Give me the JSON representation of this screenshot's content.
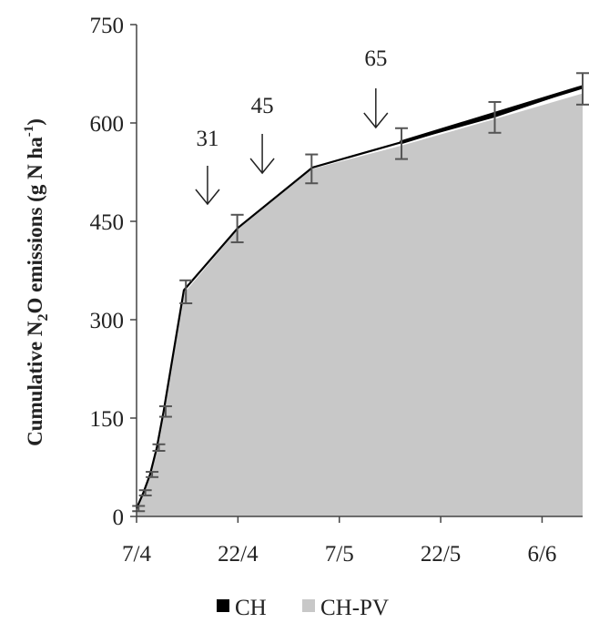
{
  "chart_data": {
    "type": "area",
    "ylabel": {
      "prefix": "Cumulative N",
      "sub": "2",
      "mid": "O emissions (g N ha",
      "sup": "-1",
      "suffix": ")"
    },
    "xlim": [
      0,
      66
    ],
    "ylim": [
      0,
      750
    ],
    "x_ticks": [
      {
        "x": 0,
        "label": "7/4"
      },
      {
        "x": 15,
        "label": "22/4"
      },
      {
        "x": 30,
        "label": "7/5"
      },
      {
        "x": 45,
        "label": "22/5"
      },
      {
        "x": 60,
        "label": "6/6"
      }
    ],
    "y_ticks": [
      0,
      150,
      300,
      450,
      600,
      750
    ],
    "series": [
      {
        "name": "CH",
        "color": "#000000",
        "x": [
          0,
          1,
          2,
          3,
          4,
          7,
          15,
          26,
          39,
          53,
          66
        ],
        "y": [
          12,
          36,
          64,
          105,
          160,
          345,
          440,
          532,
          570,
          610,
          655
        ]
      },
      {
        "name": "CH-PV",
        "color": "#c8c8c8",
        "x": [
          0,
          1,
          2,
          3,
          4,
          7,
          15,
          26,
          39,
          53,
          66
        ],
        "y": [
          12,
          36,
          64,
          105,
          160,
          340,
          438,
          530,
          565,
          606,
          645
        ]
      }
    ],
    "error_bars": [
      {
        "x": 0.3,
        "low": 8,
        "high": 16
      },
      {
        "x": 1.3,
        "low": 32,
        "high": 40
      },
      {
        "x": 2.3,
        "low": 60,
        "high": 68
      },
      {
        "x": 3.3,
        "low": 100,
        "high": 110
      },
      {
        "x": 4.3,
        "low": 152,
        "high": 168
      },
      {
        "x": 7.3,
        "low": 325,
        "high": 360
      },
      {
        "x": 14.9,
        "low": 418,
        "high": 460
      },
      {
        "x": 25.9,
        "low": 508,
        "high": 552
      },
      {
        "x": 39.2,
        "low": 545,
        "high": 592
      },
      {
        "x": 53,
        "low": 585,
        "high": 632
      },
      {
        "x": 66,
        "low": 628,
        "high": 676
      }
    ],
    "annotations": [
      {
        "label": "31",
        "x": 10.5
      },
      {
        "label": "45",
        "x": 18.6
      },
      {
        "label": "65",
        "x": 35.4
      }
    ],
    "legend": {
      "placement": "bottom-center"
    }
  }
}
